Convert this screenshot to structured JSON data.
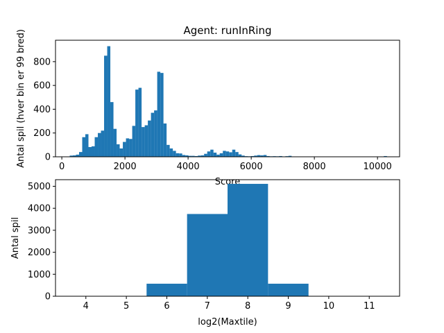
{
  "chart_data": [
    {
      "type": "bar",
      "title": "Agent: runInRing",
      "xlabel": "Score",
      "ylabel": "Antal spil (hver bin er 99 bred)",
      "xlim": [
        -200,
        10700
      ],
      "ylim": [
        0,
        980
      ],
      "xticks": [
        0,
        2000,
        4000,
        6000,
        8000,
        10000
      ],
      "yticks": [
        0,
        200,
        400,
        600,
        800
      ],
      "bin_width": 99,
      "color": "#1f77b4",
      "bins": [
        {
          "x": 250,
          "v": 10
        },
        {
          "x": 349,
          "v": 12
        },
        {
          "x": 448,
          "v": 18
        },
        {
          "x": 547,
          "v": 40
        },
        {
          "x": 646,
          "v": 165
        },
        {
          "x": 745,
          "v": 190
        },
        {
          "x": 844,
          "v": 82
        },
        {
          "x": 943,
          "v": 88
        },
        {
          "x": 1042,
          "v": 165
        },
        {
          "x": 1141,
          "v": 200
        },
        {
          "x": 1240,
          "v": 220
        },
        {
          "x": 1339,
          "v": 850
        },
        {
          "x": 1438,
          "v": 930
        },
        {
          "x": 1537,
          "v": 460
        },
        {
          "x": 1636,
          "v": 235
        },
        {
          "x": 1735,
          "v": 105
        },
        {
          "x": 1834,
          "v": 70
        },
        {
          "x": 1933,
          "v": 125
        },
        {
          "x": 2032,
          "v": 155
        },
        {
          "x": 2131,
          "v": 150
        },
        {
          "x": 2230,
          "v": 260
        },
        {
          "x": 2329,
          "v": 565
        },
        {
          "x": 2428,
          "v": 580
        },
        {
          "x": 2527,
          "v": 250
        },
        {
          "x": 2626,
          "v": 265
        },
        {
          "x": 2725,
          "v": 305
        },
        {
          "x": 2824,
          "v": 370
        },
        {
          "x": 2923,
          "v": 390
        },
        {
          "x": 3022,
          "v": 715
        },
        {
          "x": 3121,
          "v": 705
        },
        {
          "x": 3220,
          "v": 280
        },
        {
          "x": 3319,
          "v": 100
        },
        {
          "x": 3418,
          "v": 70
        },
        {
          "x": 3517,
          "v": 50
        },
        {
          "x": 3616,
          "v": 30
        },
        {
          "x": 3715,
          "v": 28
        },
        {
          "x": 3814,
          "v": 15
        },
        {
          "x": 3913,
          "v": 12
        },
        {
          "x": 4012,
          "v": 8
        },
        {
          "x": 4111,
          "v": 8
        },
        {
          "x": 4210,
          "v": 6
        },
        {
          "x": 4309,
          "v": 10
        },
        {
          "x": 4408,
          "v": 12
        },
        {
          "x": 4507,
          "v": 25
        },
        {
          "x": 4606,
          "v": 45
        },
        {
          "x": 4705,
          "v": 60
        },
        {
          "x": 4804,
          "v": 35
        },
        {
          "x": 4903,
          "v": 18
        },
        {
          "x": 5002,
          "v": 30
        },
        {
          "x": 5101,
          "v": 50
        },
        {
          "x": 5200,
          "v": 45
        },
        {
          "x": 5299,
          "v": 38
        },
        {
          "x": 5398,
          "v": 60
        },
        {
          "x": 5497,
          "v": 40
        },
        {
          "x": 5596,
          "v": 20
        },
        {
          "x": 5695,
          "v": 10
        },
        {
          "x": 5794,
          "v": 5
        },
        {
          "x": 5893,
          "v": 4
        },
        {
          "x": 5992,
          "v": 6
        },
        {
          "x": 6091,
          "v": 10
        },
        {
          "x": 6190,
          "v": 14
        },
        {
          "x": 6289,
          "v": 12
        },
        {
          "x": 6388,
          "v": 15
        },
        {
          "x": 6487,
          "v": 6
        },
        {
          "x": 6586,
          "v": 4
        },
        {
          "x": 6685,
          "v": 5
        },
        {
          "x": 6784,
          "v": 4
        },
        {
          "x": 6883,
          "v": 6
        },
        {
          "x": 6982,
          "v": 3
        },
        {
          "x": 7081,
          "v": 5
        },
        {
          "x": 7180,
          "v": 8
        },
        {
          "x": 7279,
          "v": 2
        },
        {
          "x": 7378,
          "v": 2
        },
        {
          "x": 7477,
          "v": 2
        },
        {
          "x": 10200,
          "v": 6
        }
      ]
    },
    {
      "type": "bar",
      "title": "",
      "xlabel": "log2(Maxtile)",
      "ylabel": "Antal spil",
      "xlim": [
        3.25,
        11.75
      ],
      "ylim": [
        0,
        5300
      ],
      "xticks": [
        4,
        5,
        6,
        7,
        8,
        9,
        10,
        11
      ],
      "yticks": [
        0,
        1000,
        2000,
        3000,
        4000,
        5000
      ],
      "color": "#1f77b4",
      "categories": [
        6,
        7,
        8,
        9
      ],
      "values": [
        570,
        3740,
        5110,
        570
      ]
    }
  ]
}
